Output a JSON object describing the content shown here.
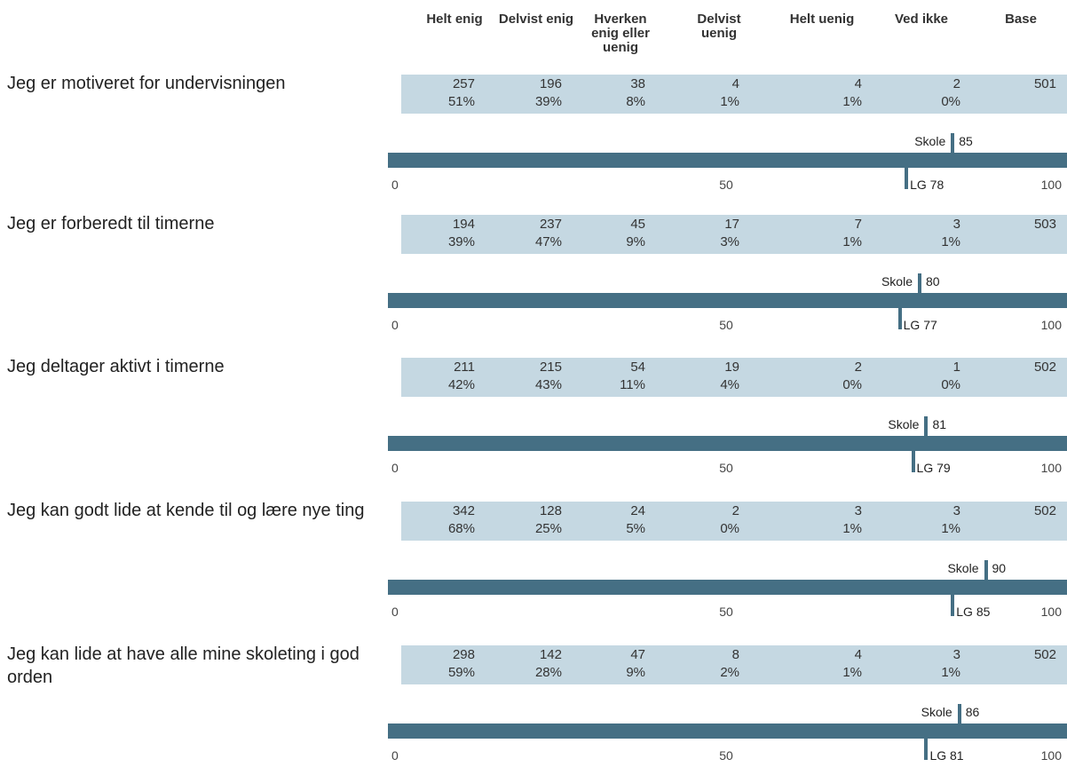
{
  "columns": [
    "Helt enig",
    "Delvist enig",
    "Hverken enig eller uenig",
    "Delvist uenig",
    "Helt uenig",
    "Ved ikke",
    "Base"
  ],
  "labels": {
    "school": "Skole",
    "lg": "LG"
  },
  "axis_ticks": [
    "0",
    "50",
    "100"
  ],
  "chart_data": {
    "type": "table",
    "columns": [
      "Helt enig",
      "Delvist enig",
      "Hverken enig eller uenig",
      "Delvist uenig",
      "Helt uenig",
      "Ved ikke",
      "Base"
    ],
    "scale": {
      "min": 0,
      "max": 100,
      "ticks": [
        0,
        50,
        100
      ]
    },
    "rows": [
      {
        "question": "Jeg er motiveret for undervisningen",
        "counts": [
          "257",
          "196",
          "38",
          "4",
          "4",
          "2",
          "501"
        ],
        "percents": [
          "51%",
          "39%",
          "8%",
          "1%",
          "1%",
          "0%"
        ],
        "skole": 85,
        "lg": 78
      },
      {
        "question": "Jeg er forberedt til timerne",
        "counts": [
          "194",
          "237",
          "45",
          "17",
          "7",
          "3",
          "503"
        ],
        "percents": [
          "39%",
          "47%",
          "9%",
          "3%",
          "1%",
          "1%"
        ],
        "skole": 80,
        "lg": 77
      },
      {
        "question": "Jeg deltager aktivt i timerne",
        "counts": [
          "211",
          "215",
          "54",
          "19",
          "2",
          "1",
          "502"
        ],
        "percents": [
          "42%",
          "43%",
          "11%",
          "4%",
          "0%",
          "0%"
        ],
        "skole": 81,
        "lg": 79
      },
      {
        "question": "Jeg kan godt lide at kende til og lære nye ting",
        "counts": [
          "342",
          "128",
          "24",
          "2",
          "3",
          "3",
          "502"
        ],
        "percents": [
          "68%",
          "25%",
          "5%",
          "0%",
          "1%",
          "1%"
        ],
        "skole": 90,
        "lg": 85
      },
      {
        "question": "Jeg kan lide at have alle mine skoleting i god orden",
        "counts": [
          "298",
          "142",
          "47",
          "8",
          "4",
          "3",
          "502"
        ],
        "percents": [
          "59%",
          "28%",
          "9%",
          "2%",
          "1%",
          "1%"
        ],
        "skole": 86,
        "lg": 81
      }
    ]
  },
  "colors": {
    "band": "#c5d8e2",
    "bar": "#456f84"
  }
}
